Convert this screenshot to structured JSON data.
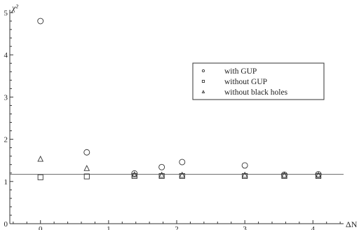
{
  "chart_data": {
    "type": "scatter",
    "xlabel": "ΔN",
    "ylabel": "χ²",
    "xlim": [
      -0.45,
      4.45
    ],
    "ylim": [
      0,
      5
    ],
    "xticks": [
      0,
      1,
      2,
      3,
      4
    ],
    "xtick_labels": [
      "0",
      "1",
      "2",
      "3",
      "4"
    ],
    "yticks": [
      0,
      1,
      2,
      3,
      4,
      5
    ],
    "ytick_labels": [
      "0",
      "1",
      "2",
      "3",
      "4",
      "5"
    ],
    "grid": false,
    "legend_position": "top-right",
    "reference_line": {
      "y": 1.17,
      "color": "#666666"
    },
    "series": [
      {
        "name": "with GUP",
        "marker": "circle",
        "x": [
          0,
          0.68,
          1.38,
          1.78,
          2.08,
          3.0,
          3.58,
          4.08
        ],
        "y": [
          4.8,
          1.69,
          1.19,
          1.34,
          1.46,
          1.38,
          1.16,
          1.17
        ]
      },
      {
        "name": "without GUP",
        "marker": "square",
        "x": [
          0,
          0.68,
          1.38,
          1.78,
          2.08,
          3.0,
          3.58,
          4.08
        ],
        "y": [
          1.1,
          1.12,
          1.13,
          1.13,
          1.13,
          1.13,
          1.13,
          1.13
        ]
      },
      {
        "name": "without black holes",
        "marker": "triangle",
        "x": [
          0,
          0.68,
          1.38,
          1.78,
          2.08,
          3.0,
          3.58,
          4.08
        ],
        "y": [
          1.53,
          1.31,
          1.16,
          1.15,
          1.15,
          1.15,
          1.15,
          1.15
        ]
      }
    ]
  }
}
